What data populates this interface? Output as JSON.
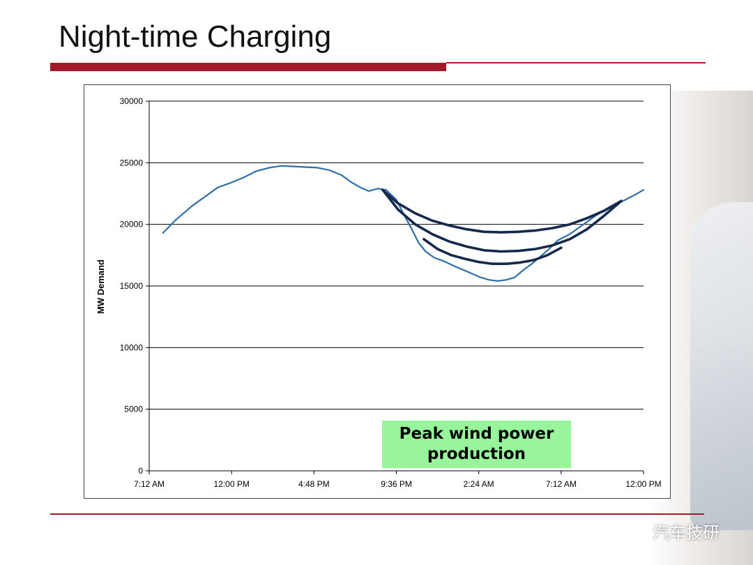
{
  "slide": {
    "title": "Night-time Charging"
  },
  "annotation": {
    "line1": "Peak wind power",
    "line2": "production"
  },
  "watermark": {
    "text": "汽车技研",
    "icon": "wechat-icon"
  },
  "colors": {
    "accent_rule": "#a5192a",
    "demand_line": "#2e6fa7",
    "charging_curves": "#14294d",
    "annotation_bg": "#99f59b"
  },
  "chart_data": {
    "type": "line",
    "title": "",
    "xlabel": "",
    "ylabel": "MW Demand",
    "ylim": [
      0,
      30000
    ],
    "yticks": [
      0,
      5000,
      10000,
      15000,
      20000,
      25000,
      30000
    ],
    "x_ticks_hours": [
      0,
      4.8,
      9.6,
      14.4,
      19.2,
      24,
      28.8
    ],
    "x_tick_labels": [
      "7:12 AM",
      "12:00 PM",
      "4:48 PM",
      "9:36 PM",
      "2:24 AM",
      "7:12 AM",
      "12:00 PM"
    ],
    "grid": "horizontal",
    "series": [
      {
        "x_hours": [
          0.8,
          1.5,
          2.5,
          3.2,
          4.0,
          4.8,
          5.5,
          6.2,
          7.0,
          7.7,
          8.4,
          9.1,
          9.8,
          10.5,
          11.2,
          11.8,
          12.3,
          12.8,
          13.3,
          13.8,
          14.4,
          14.8,
          15.3,
          15.7,
          16.1,
          16.6,
          17.2,
          17.8,
          18.3,
          18.8,
          19.3,
          19.8,
          20.3,
          20.8,
          21.3,
          21.8,
          22.3,
          22.8,
          23.3,
          23.8,
          24.5,
          25.2,
          26.0,
          26.8,
          27.6,
          28.3,
          28.8
        ],
        "values": [
          19300,
          20300,
          21500,
          22200,
          23000,
          23400,
          23800,
          24300,
          24600,
          24750,
          24700,
          24650,
          24600,
          24400,
          24000,
          23400,
          23000,
          22700,
          22900,
          22800,
          22000,
          20900,
          19600,
          18500,
          17800,
          17300,
          17000,
          16600,
          16300,
          16000,
          15700,
          15500,
          15400,
          15500,
          15700,
          16300,
          16800,
          17400,
          18000,
          18700,
          19200,
          19900,
          20700,
          21400,
          21900,
          22400,
          22800
        ]
      },
      {
        "x_hours": [
          13.6,
          14.5,
          15.5,
          16.5,
          17.5,
          18.5,
          19.5,
          20.5,
          21.5,
          22.5,
          23.5,
          24.5,
          25.5,
          26.5,
          27.5
        ],
        "values": [
          22800,
          21700,
          20900,
          20300,
          19900,
          19600,
          19400,
          19350,
          19400,
          19500,
          19700,
          20000,
          20500,
          21100,
          21900
        ]
      },
      {
        "x_hours": [
          13.6,
          14.5,
          15.5,
          16.5,
          17.5,
          18.5,
          19.5,
          20.5,
          21.5,
          22.5,
          23.5,
          24.5,
          25.5,
          26.5,
          27.5
        ],
        "values": [
          22800,
          21200,
          20000,
          19200,
          18600,
          18200,
          17900,
          17800,
          17850,
          18000,
          18300,
          18800,
          19600,
          20700,
          21900
        ]
      },
      {
        "x_hours": [
          16.0,
          16.8,
          17.6,
          18.4,
          19.2,
          20.0,
          20.8,
          21.6,
          22.4,
          23.2,
          24.0
        ],
        "values": [
          18800,
          18000,
          17500,
          17200,
          16950,
          16800,
          16800,
          16900,
          17100,
          17500,
          18100
        ]
      }
    ]
  }
}
